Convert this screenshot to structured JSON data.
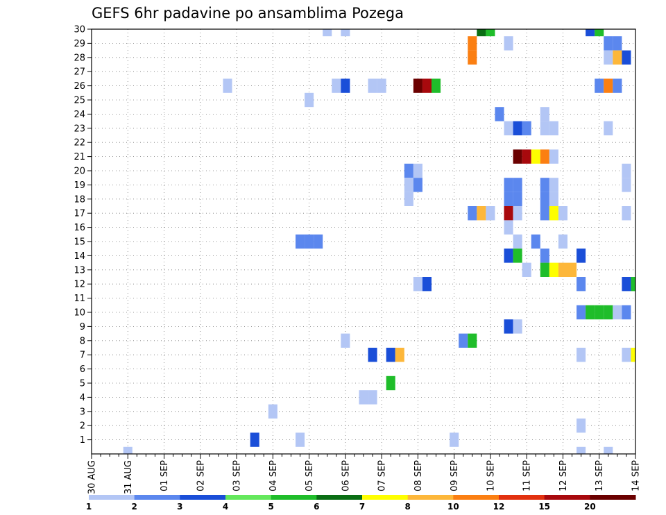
{
  "chart_data": {
    "type": "heatmap",
    "title": "GEFS 6hr padavine po ansamblima Pozega",
    "x_ticks": [
      "30 AUG",
      "31 AUG",
      "01 SEP",
      "02 SEP",
      "03 SEP",
      "04 SEP",
      "05 SEP",
      "06 SEP",
      "07 SEP",
      "08 SEP",
      "09 SEP",
      "10 SEP",
      "11 SEP",
      "12 SEP",
      "13 SEP",
      "14 SEP"
    ],
    "y_ticks": [
      "1",
      "2",
      "3",
      "4",
      "5",
      "6",
      "7",
      "8",
      "9",
      "10",
      "11",
      "12",
      "13",
      "14",
      "15",
      "16",
      "17",
      "18",
      "19",
      "20",
      "21",
      "22",
      "23",
      "24",
      "25",
      "26",
      "27",
      "28",
      "29",
      "30"
    ],
    "steps_per_day": 4,
    "n_steps": 60,
    "grid": "dotted",
    "legend": {
      "placement": "bottom",
      "labels": [
        "1",
        "2",
        "3",
        "4",
        "5",
        "6",
        "7",
        "8",
        "10",
        "12",
        "15",
        "20"
      ],
      "colors": [
        "#b3c6f5",
        "#5b87ee",
        "#1a4ed8",
        "#64e85c",
        "#1fbd2a",
        "#0a6e14",
        "#fefe00",
        "#fdb73a",
        "#fb7f12",
        "#e2310f",
        "#a8090d",
        "#6b0000"
      ]
    },
    "cells": [
      [
        30,
        26,
        1
      ],
      [
        30,
        43,
        6
      ],
      [
        30,
        44,
        5
      ],
      [
        30,
        55,
        3
      ],
      [
        30,
        56,
        5
      ],
      [
        30,
        28,
        1
      ],
      [
        29,
        42,
        10
      ],
      [
        29,
        46,
        1
      ],
      [
        29,
        57,
        2
      ],
      [
        29,
        58,
        2
      ],
      [
        28,
        42,
        10
      ],
      [
        28,
        57,
        1
      ],
      [
        28,
        58,
        8
      ],
      [
        28,
        59,
        3
      ],
      [
        26,
        15,
        1
      ],
      [
        26,
        27,
        1
      ],
      [
        26,
        28,
        3
      ],
      [
        26,
        31,
        1
      ],
      [
        26,
        32,
        1
      ],
      [
        26,
        36,
        20
      ],
      [
        26,
        37,
        15
      ],
      [
        26,
        38,
        5
      ],
      [
        26,
        56,
        2
      ],
      [
        26,
        57,
        10
      ],
      [
        26,
        58,
        2
      ],
      [
        25,
        24,
        1
      ],
      [
        24,
        45,
        2
      ],
      [
        24,
        50,
        1
      ],
      [
        23,
        46,
        1
      ],
      [
        23,
        47,
        3
      ],
      [
        23,
        48,
        2
      ],
      [
        23,
        50,
        1
      ],
      [
        23,
        51,
        1
      ],
      [
        23,
        57,
        1
      ],
      [
        21,
        47,
        20
      ],
      [
        21,
        48,
        15
      ],
      [
        21,
        49,
        7
      ],
      [
        21,
        50,
        10
      ],
      [
        21,
        51,
        1
      ],
      [
        20,
        35,
        2
      ],
      [
        20,
        36,
        1
      ],
      [
        20,
        59,
        1
      ],
      [
        19,
        35,
        1
      ],
      [
        19,
        36,
        2
      ],
      [
        19,
        46,
        2
      ],
      [
        19,
        47,
        2
      ],
      [
        19,
        50,
        2
      ],
      [
        19,
        51,
        1
      ],
      [
        19,
        59,
        1
      ],
      [
        18,
        35,
        1
      ],
      [
        18,
        46,
        2
      ],
      [
        18,
        47,
        2
      ],
      [
        18,
        50,
        2
      ],
      [
        18,
        51,
        1
      ],
      [
        17,
        42,
        2
      ],
      [
        17,
        43,
        8
      ],
      [
        17,
        44,
        1
      ],
      [
        17,
        46,
        15
      ],
      [
        17,
        47,
        1
      ],
      [
        17,
        50,
        2
      ],
      [
        17,
        51,
        7
      ],
      [
        17,
        52,
        1
      ],
      [
        17,
        59,
        1
      ],
      [
        16,
        46,
        1
      ],
      [
        15,
        23,
        2
      ],
      [
        15,
        24,
        2
      ],
      [
        15,
        25,
        2
      ],
      [
        15,
        47,
        1
      ],
      [
        15,
        49,
        2
      ],
      [
        15,
        52,
        1
      ],
      [
        14,
        46,
        3
      ],
      [
        14,
        47,
        5
      ],
      [
        14,
        50,
        2
      ],
      [
        14,
        54,
        3
      ],
      [
        13,
        48,
        1
      ],
      [
        13,
        50,
        5
      ],
      [
        13,
        51,
        7
      ],
      [
        13,
        52,
        8
      ],
      [
        13,
        53,
        8
      ],
      [
        12,
        36,
        1
      ],
      [
        12,
        37,
        3
      ],
      [
        12,
        54,
        2
      ],
      [
        12,
        59,
        3
      ],
      [
        12,
        60,
        5
      ],
      [
        10,
        54,
        2
      ],
      [
        10,
        55,
        5
      ],
      [
        10,
        56,
        5
      ],
      [
        10,
        57,
        5
      ],
      [
        10,
        58,
        1
      ],
      [
        10,
        59,
        2
      ],
      [
        9,
        46,
        3
      ],
      [
        9,
        47,
        1
      ],
      [
        8,
        28,
        1
      ],
      [
        8,
        41,
        2
      ],
      [
        8,
        42,
        5
      ],
      [
        7,
        31,
        3
      ],
      [
        7,
        33,
        3
      ],
      [
        7,
        34,
        8
      ],
      [
        7,
        54,
        1
      ],
      [
        7,
        59,
        1
      ],
      [
        7,
        60,
        7
      ],
      [
        5,
        33,
        5
      ],
      [
        4,
        30,
        1
      ],
      [
        4,
        31,
        1
      ],
      [
        3,
        20,
        1
      ],
      [
        2,
        54,
        1
      ],
      [
        1,
        18,
        3
      ],
      [
        1,
        23,
        1
      ],
      [
        1,
        40,
        1
      ],
      [
        0,
        4,
        1
      ],
      [
        0,
        54,
        1
      ],
      [
        0,
        57,
        1
      ]
    ]
  }
}
